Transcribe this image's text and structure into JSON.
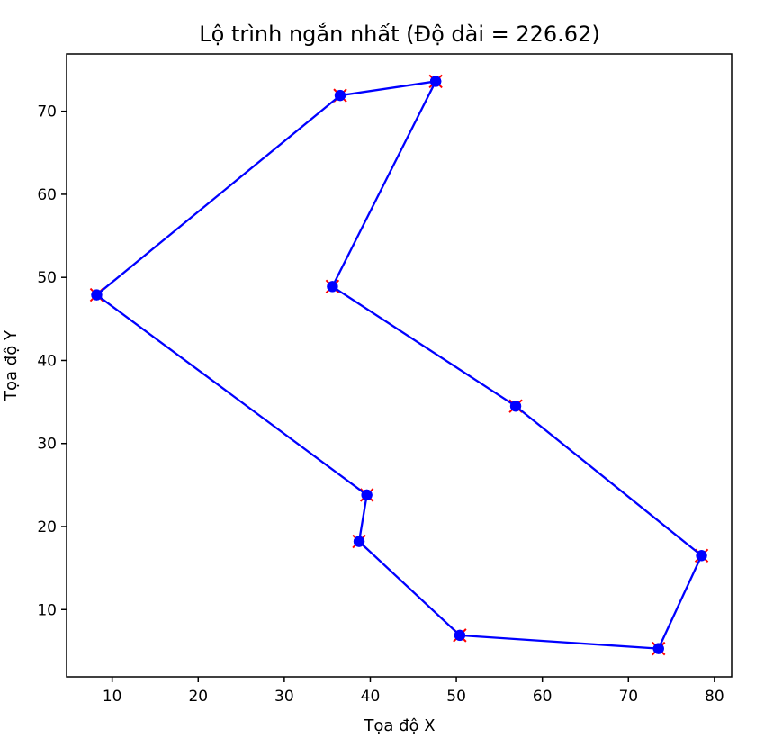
{
  "chart_data": {
    "type": "line",
    "title": "Lộ trình ngắn nhất (Độ dài = 226.62)",
    "xlabel": "Tọa độ X",
    "ylabel": "Tọa độ Y",
    "xlim": [
      4.7,
      82.0
    ],
    "ylim": [
      1.9,
      76.9
    ],
    "x_ticks": [
      10,
      20,
      30,
      40,
      50,
      60,
      70,
      80
    ],
    "y_ticks": [
      10,
      20,
      30,
      40,
      50,
      60,
      70
    ],
    "grid": false,
    "series": [
      {
        "color": "#0000ff",
        "marker": "circle",
        "points": [
          {
            "x": 47.6,
            "y": 73.6
          },
          {
            "x": 36.5,
            "y": 71.9
          },
          {
            "x": 8.2,
            "y": 47.9
          },
          {
            "x": 39.6,
            "y": 23.8
          },
          {
            "x": 38.7,
            "y": 18.2
          },
          {
            "x": 50.4,
            "y": 6.9
          },
          {
            "x": 73.5,
            "y": 5.3
          },
          {
            "x": 78.5,
            "y": 16.5
          },
          {
            "x": 56.9,
            "y": 34.5
          },
          {
            "x": 35.6,
            "y": 48.9
          },
          {
            "x": 47.6,
            "y": 73.6
          }
        ]
      }
    ],
    "city_markers": {
      "color": "#ff0000",
      "marker": "x",
      "points": [
        {
          "x": 47.6,
          "y": 73.6
        },
        {
          "x": 36.5,
          "y": 71.9
        },
        {
          "x": 8.2,
          "y": 47.9
        },
        {
          "x": 39.6,
          "y": 23.8
        },
        {
          "x": 38.7,
          "y": 18.2
        },
        {
          "x": 50.4,
          "y": 6.9
        },
        {
          "x": 73.5,
          "y": 5.3
        },
        {
          "x": 78.5,
          "y": 16.5
        },
        {
          "x": 56.9,
          "y": 34.5
        },
        {
          "x": 35.6,
          "y": 48.9
        }
      ]
    }
  }
}
